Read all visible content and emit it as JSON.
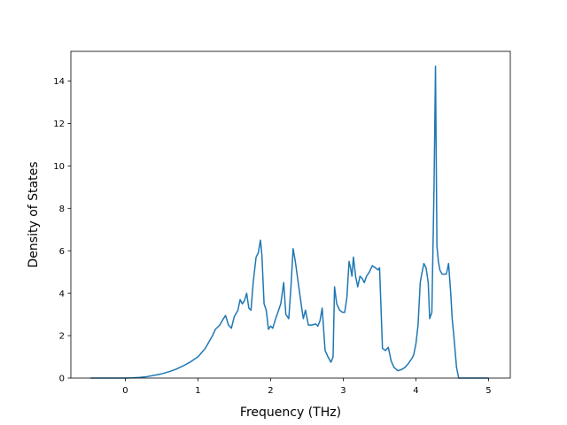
{
  "chart_data": {
    "type": "line",
    "title": "",
    "xlabel": "Frequency (THz)",
    "ylabel": "Density of States",
    "xlim": [
      -0.75,
      5.3
    ],
    "ylim": [
      0,
      15.4
    ],
    "xticks": [
      0,
      1,
      2,
      3,
      4,
      5
    ],
    "xtick_labels": [
      "0",
      "1",
      "2",
      "3",
      "4",
      "5"
    ],
    "yticks": [
      0,
      2,
      4,
      6,
      8,
      10,
      12,
      14
    ],
    "ytick_labels": [
      "0",
      "2",
      "4",
      "6",
      "8",
      "10",
      "12",
      "14"
    ],
    "grid": false,
    "line_color": "#1f77b4",
    "series": [
      {
        "x": [
          -0.48,
          -0.3,
          -0.1,
          0.0,
          0.1,
          0.2,
          0.3,
          0.4,
          0.5,
          0.6,
          0.7,
          0.8,
          0.9,
          1.0,
          1.05,
          1.1,
          1.15,
          1.2,
          1.24,
          1.3,
          1.35,
          1.38,
          1.42,
          1.46,
          1.5,
          1.55,
          1.58,
          1.61,
          1.64,
          1.67,
          1.7,
          1.73,
          1.76,
          1.8,
          1.83,
          1.86,
          1.88,
          1.91,
          1.94,
          1.97,
          2.0,
          2.03,
          2.06,
          2.1,
          2.14,
          2.18,
          2.21,
          2.25,
          2.28,
          2.31,
          2.34,
          2.38,
          2.42,
          2.45,
          2.48,
          2.52,
          2.57,
          2.62,
          2.65,
          2.68,
          2.71,
          2.75,
          2.79,
          2.83,
          2.86,
          2.88,
          2.91,
          2.95,
          2.99,
          3.02,
          3.05,
          3.08,
          3.1,
          3.12,
          3.14,
          3.17,
          3.2,
          3.23,
          3.26,
          3.29,
          3.32,
          3.36,
          3.4,
          3.44,
          3.48,
          3.5,
          3.54,
          3.58,
          3.62,
          3.66,
          3.7,
          3.75,
          3.8,
          3.85,
          3.9,
          3.95,
          3.97,
          4.0,
          4.03,
          4.06,
          4.08,
          4.11,
          4.14,
          4.17,
          4.19,
          4.22,
          4.25,
          4.27,
          4.29,
          4.31,
          4.33,
          4.36,
          4.39,
          4.42,
          4.45,
          4.48,
          4.5,
          4.53,
          4.56,
          4.59,
          4.62,
          4.7,
          5.0
        ],
        "y": [
          0,
          0,
          0,
          0,
          0.01,
          0.03,
          0.07,
          0.13,
          0.2,
          0.3,
          0.42,
          0.58,
          0.77,
          1.0,
          1.2,
          1.4,
          1.7,
          2.0,
          2.3,
          2.5,
          2.8,
          2.95,
          2.5,
          2.35,
          2.9,
          3.2,
          3.7,
          3.5,
          3.65,
          4.0,
          3.3,
          3.2,
          4.5,
          5.7,
          5.9,
          6.5,
          5.8,
          3.5,
          3.2,
          2.3,
          2.45,
          2.35,
          2.7,
          3.1,
          3.5,
          4.5,
          3.0,
          2.8,
          4.3,
          6.1,
          5.5,
          4.5,
          3.5,
          2.8,
          3.2,
          2.5,
          2.5,
          2.55,
          2.45,
          2.7,
          3.3,
          1.3,
          1.0,
          0.75,
          1.0,
          4.3,
          3.5,
          3.2,
          3.1,
          3.1,
          3.8,
          5.5,
          5.2,
          4.8,
          5.7,
          4.8,
          4.3,
          4.8,
          4.7,
          4.5,
          4.8,
          5.0,
          5.3,
          5.2,
          5.1,
          5.2,
          1.4,
          1.3,
          1.45,
          0.8,
          0.5,
          0.35,
          0.4,
          0.5,
          0.7,
          0.95,
          1.1,
          1.6,
          2.5,
          4.5,
          4.9,
          5.4,
          5.2,
          4.5,
          2.8,
          3.1,
          9.0,
          14.7,
          6.2,
          5.5,
          5.1,
          4.9,
          4.9,
          4.9,
          5.4,
          4.0,
          2.8,
          1.7,
          0.5,
          0,
          0,
          0,
          0
        ]
      }
    ]
  }
}
